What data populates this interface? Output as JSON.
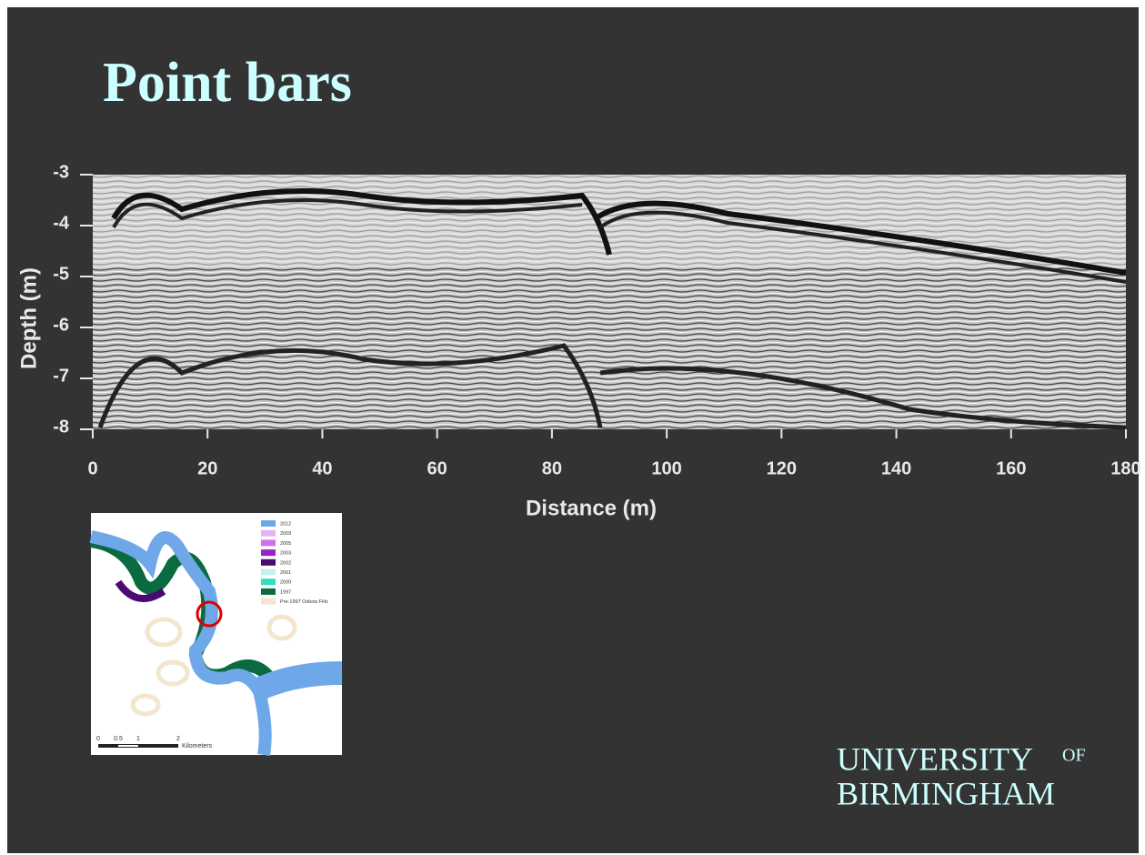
{
  "slide": {
    "title": "Point bars"
  },
  "chart_data": {
    "type": "radargram",
    "x_label": "Distance (m)",
    "y_label": "Depth  (m)",
    "xlim": [
      0,
      180
    ],
    "xticks": [
      0,
      20,
      40,
      60,
      80,
      100,
      120,
      140,
      160,
      180
    ],
    "ylim": [
      -8,
      -3
    ],
    "yticks": [
      -3,
      -4,
      -5,
      -6,
      -7,
      -8
    ]
  },
  "map": {
    "legend": [
      {
        "label": "2012",
        "color": "#6fa8e8"
      },
      {
        "label": "2009",
        "color": "#e6b3f0"
      },
      {
        "label": "2005",
        "color": "#d070e8"
      },
      {
        "label": "2003",
        "color": "#9a20c8"
      },
      {
        "label": "2002",
        "color": "#4a0a70"
      },
      {
        "label": "2001",
        "color": "#c8f0f0"
      },
      {
        "label": "2000",
        "color": "#30e0c0"
      },
      {
        "label": "1997",
        "color": "#0a6a40"
      },
      {
        "label": "Pre-1997 Oxbow Fills",
        "color": "#f3e6cc"
      }
    ],
    "scale": [
      "0",
      "0.5",
      "1",
      "2"
    ],
    "scale_unit": "Kilometers"
  },
  "logo": {
    "line1": "UNIVERSITY",
    "of": "OF",
    "line2": "BIRMINGHAM"
  }
}
